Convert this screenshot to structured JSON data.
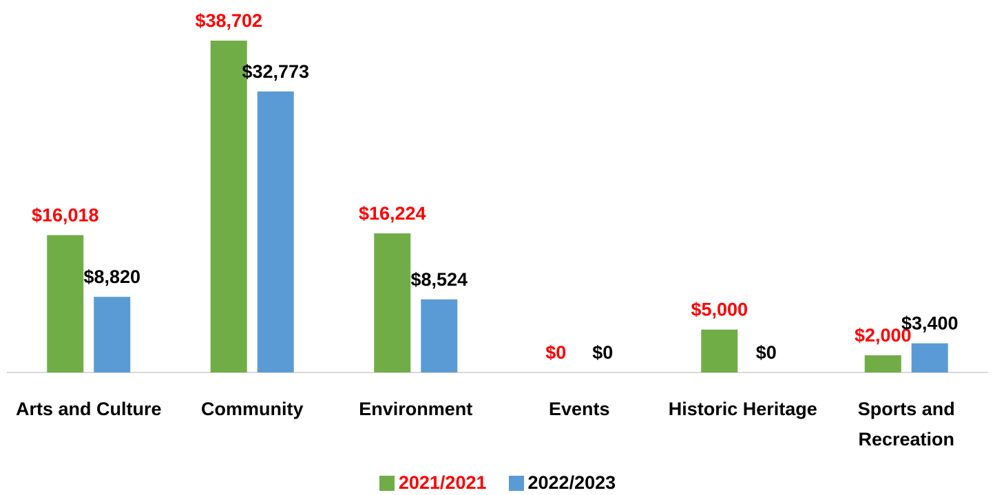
{
  "chart_data": {
    "type": "bar",
    "categories": [
      "Arts and Culture",
      "Community",
      "Environment",
      "Events",
      "Historic Heritage",
      "Sports and Recreation"
    ],
    "series": [
      {
        "name": "2021/2021",
        "color": "#70ad47",
        "label_color": "#ff0000",
        "values": [
          16018,
          38702,
          16224,
          0,
          5000,
          2000
        ],
        "value_labels": [
          "$16,018",
          "$38,702",
          "$16,224",
          "$0",
          "$5,000",
          "$2,000"
        ]
      },
      {
        "name": "2022/2023",
        "color": "#5b9bd5",
        "label_color": "#000000",
        "values": [
          8820,
          32773,
          8524,
          0,
          0,
          3400
        ],
        "value_labels": [
          "$8,820",
          "$32,773",
          "$8,524",
          "$0",
          "$0",
          "$3,400"
        ]
      }
    ],
    "legend": "bottom"
  }
}
